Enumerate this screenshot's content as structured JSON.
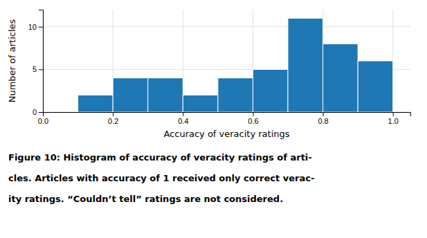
{
  "chart_data": {
    "type": "histogram",
    "bins": [
      0.0,
      0.1,
      0.2,
      0.3,
      0.4,
      0.5,
      0.6,
      0.7,
      0.8,
      0.9,
      1.0
    ],
    "values": [
      0,
      2,
      4,
      4,
      2,
      4,
      5,
      11,
      8,
      6
    ],
    "color": "#1f77b4",
    "xlabel": "Accuracy of veracity ratings",
    "ylabel": "Number of articles",
    "xlim": [
      0.0,
      1.05
    ],
    "ylim": [
      0,
      12
    ],
    "xticks": [
      {
        "value": 0.0,
        "label": "0.0"
      },
      0.2,
      0.4,
      0.6,
      0.8,
      {
        "value": 1.0,
        "label": "1.0"
      }
    ],
    "yticks": [
      0,
      5,
      10
    ],
    "grid": true,
    "annotations": [
      "Figure 10: Histogram of accuracy of veracity ratings of arti-",
      "cles. Articles with accuracy of 1 received only correct verac-",
      "ity ratings. “Couldn’t tell” ratings are not considered."
    ]
  }
}
